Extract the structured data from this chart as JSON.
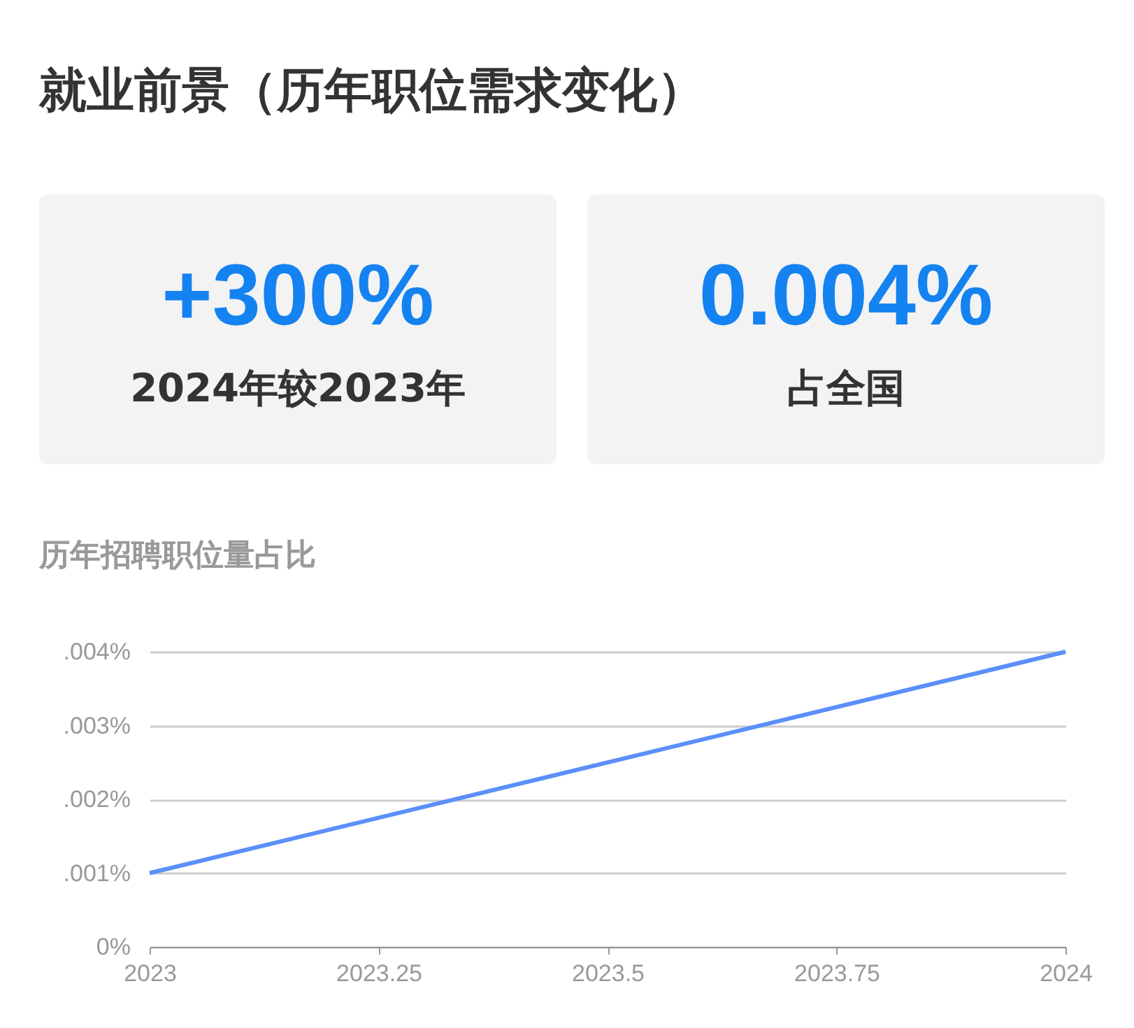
{
  "chart_data": [
    {
      "type": "other",
      "title": "就业前景（历年职位需求变化）",
      "annotations": [
        "+300%",
        "2024年较2023年",
        "0.004%",
        "占全国"
      ]
    },
    {
      "type": "line",
      "title": "历年招聘职位量占比",
      "x": [
        2023,
        2024
      ],
      "series": [
        {
          "color": "#5b8ff9",
          "values": [
            0.001,
            0.004
          ]
        }
      ],
      "xlim": [
        2023,
        2024
      ],
      "xticks": [
        2023,
        2023.25,
        2023.5,
        2023.75,
        2024
      ],
      "ylim": [
        0,
        0.004
      ],
      "yticks": [
        {
          "value": 0,
          "label": "0%"
        },
        {
          "value": 0.001,
          "label": ".001%"
        },
        {
          "value": 0.002,
          "label": ".002%"
        },
        {
          "value": 0.003,
          "label": ".003%"
        },
        {
          "value": 0.004,
          "label": ".004%"
        }
      ],
      "grid": "y",
      "marker": "none",
      "line_style": "solid"
    }
  ]
}
